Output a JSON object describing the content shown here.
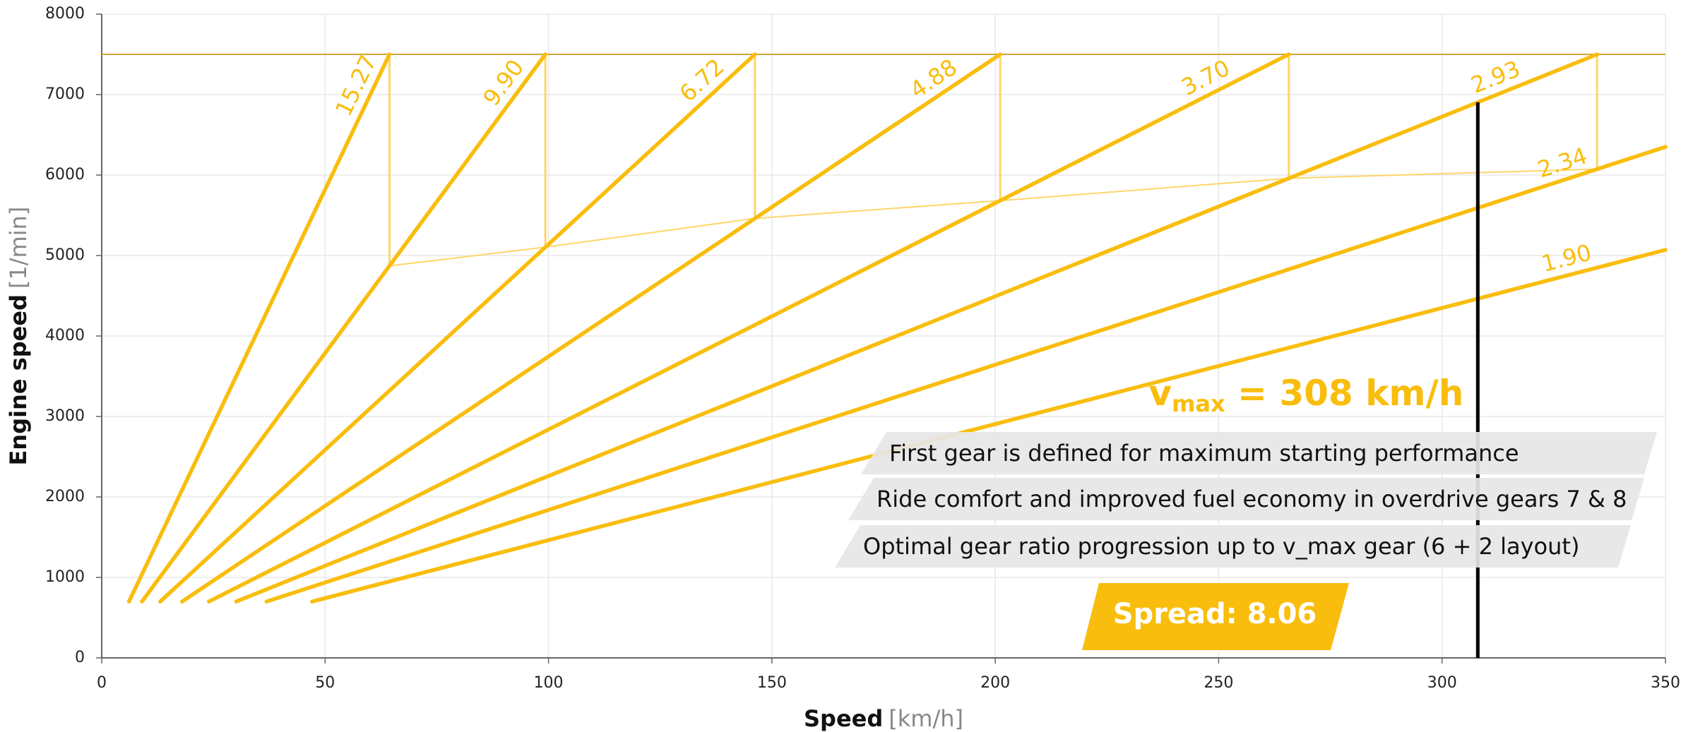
{
  "chart_data": {
    "type": "line",
    "x_label": "Speed",
    "x_unit": "[km/h]",
    "y_label": "Engine speed",
    "y_unit": "[1/min]",
    "xlim": [
      0,
      350
    ],
    "xticks": [
      0,
      50,
      100,
      150,
      200,
      250,
      300,
      350
    ],
    "ylim": [
      0,
      8000
    ],
    "yticks": [
      0,
      1000,
      2000,
      3000,
      4000,
      5000,
      6000,
      7000,
      8000
    ],
    "grid": true,
    "color": "#f9bd0d",
    "shift_color": "#fdd66a",
    "limit_color": "#d2a43a",
    "rev_limit": 7500,
    "series": [
      {
        "label": "15.27",
        "x": [
          6.1,
          64.4
        ],
        "values": [
          700,
          7500
        ]
      },
      {
        "label": "9.90",
        "x": [
          9.0,
          99.3
        ],
        "values": [
          700,
          7500
        ]
      },
      {
        "label": "6.72",
        "x": [
          13.1,
          146.2
        ],
        "values": [
          700,
          7500
        ]
      },
      {
        "label": "4.88",
        "x": [
          18.0,
          201.1
        ],
        "values": [
          700,
          7500
        ]
      },
      {
        "label": "3.70",
        "x": [
          24.0,
          265.7
        ],
        "values": [
          700,
          7500
        ]
      },
      {
        "label": "2.93",
        "x": [
          30.1,
          334.7
        ],
        "values": [
          700,
          7500
        ]
      },
      {
        "label": "2.34",
        "x": [
          36.9,
          350
        ],
        "values": [
          700,
          6350
        ]
      },
      {
        "label": "1.90",
        "x": [
          47.1,
          350
        ],
        "values": [
          700,
          5070
        ]
      }
    ],
    "vmax": 308,
    "vmax_label": [
      "v",
      "max",
      " = 308 km/h"
    ],
    "notes": [
      "First gear is defined for maximum starting performance",
      "Ride comfort and improved fuel economy in overdrive gears 7 & 8",
      "Optimal gear ratio progression up to v_max gear (6 + 2 layout)"
    ],
    "spread_label": "Spread: 8.06"
  }
}
